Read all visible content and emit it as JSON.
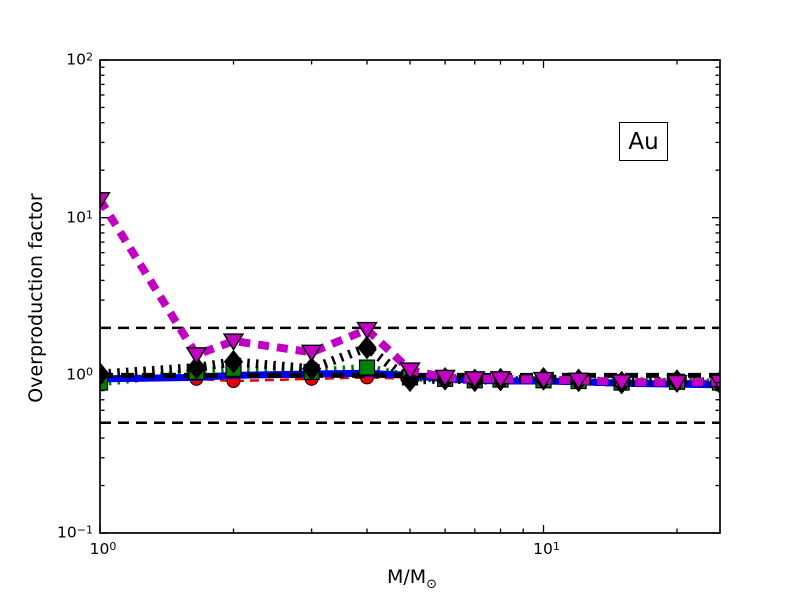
{
  "figure": {
    "background": "#ffffff"
  },
  "axes": {
    "x": {
      "label_base": "M/M",
      "label_sub": "⊙",
      "scale": "log",
      "tick_base": "10",
      "major_ticks": [
        {
          "e": 0,
          "label": "0"
        },
        {
          "e": 1,
          "label": "1"
        }
      ]
    },
    "y": {
      "label": "Overproduction factor",
      "scale": "log",
      "tick_base": "10",
      "major_ticks": [
        {
          "e": -1,
          "label": "−1"
        },
        {
          "e": 0,
          "label": "0"
        },
        {
          "e": 1,
          "label": "1"
        },
        {
          "e": 2,
          "label": "2"
        }
      ]
    }
  },
  "annotation": {
    "text": "Au"
  },
  "chart_data": {
    "type": "line",
    "title": "",
    "xlabel": "M/M_sun",
    "ylabel": "Overproduction factor",
    "xlim": [
      1,
      25.3
    ],
    "ylim": [
      0.1,
      100
    ],
    "x_scale": "log",
    "y_scale": "log",
    "grid": false,
    "legend": null,
    "annotation": "Au",
    "x_values": [
      1,
      1.65,
      2,
      3,
      4,
      5,
      6,
      7,
      8,
      10,
      12,
      15,
      20,
      25
    ],
    "series": [
      {
        "name": "magenta-dashed-triangles",
        "color": "#C200C2",
        "linestyle": "dashed",
        "linewidth": 8,
        "marker": "triangle-down",
        "values": [
          13.0,
          1.35,
          1.65,
          1.4,
          1.95,
          1.08,
          0.97,
          0.95,
          0.95,
          0.94,
          0.93,
          0.91,
          0.9,
          0.91
        ]
      },
      {
        "name": "black-dotted-diamonds",
        "color": "#000000",
        "linestyle": "dotted",
        "linewidth": 9,
        "marker": "diamond",
        "values": [
          1.02,
          1.12,
          1.22,
          1.1,
          1.5,
          0.93,
          0.95,
          0.93,
          0.94,
          0.95,
          0.93,
          0.9,
          0.92,
          0.9
        ]
      },
      {
        "name": "green-dotted-squares",
        "color": "#007F00",
        "linestyle": "dotted",
        "linewidth": 8,
        "marker": "square",
        "values": [
          0.9,
          1.05,
          1.1,
          1.05,
          1.12,
          0.97,
          0.95,
          0.93,
          0.94,
          0.93,
          0.92,
          0.9,
          0.91,
          0.9
        ]
      },
      {
        "name": "blue-solid",
        "color": "#0000EE",
        "linestyle": "solid",
        "linewidth": 7,
        "marker": "none",
        "values": [
          0.95,
          0.97,
          1.0,
          1.02,
          1.03,
          1.0,
          0.95,
          0.93,
          0.92,
          0.92,
          0.91,
          0.89,
          0.88,
          0.87
        ]
      },
      {
        "name": "red-dashed-circles",
        "color": "#E80000",
        "linestyle": "dashed",
        "linewidth": 2.5,
        "marker": "circle",
        "values": [
          0.93,
          0.95,
          0.92,
          0.95,
          0.97,
          0.95,
          0.94,
          0.93,
          0.93,
          0.94,
          0.93,
          0.92,
          0.92,
          0.92
        ]
      }
    ],
    "reference_lines": [
      {
        "y": 0.5,
        "style": "dashed",
        "linewidth": 2.5,
        "color": "#000000"
      },
      {
        "y": 1.0,
        "style": "dashed",
        "linewidth": 5,
        "color": "#000000"
      },
      {
        "y": 2.0,
        "style": "dashed",
        "linewidth": 2.5,
        "color": "#000000"
      }
    ]
  }
}
